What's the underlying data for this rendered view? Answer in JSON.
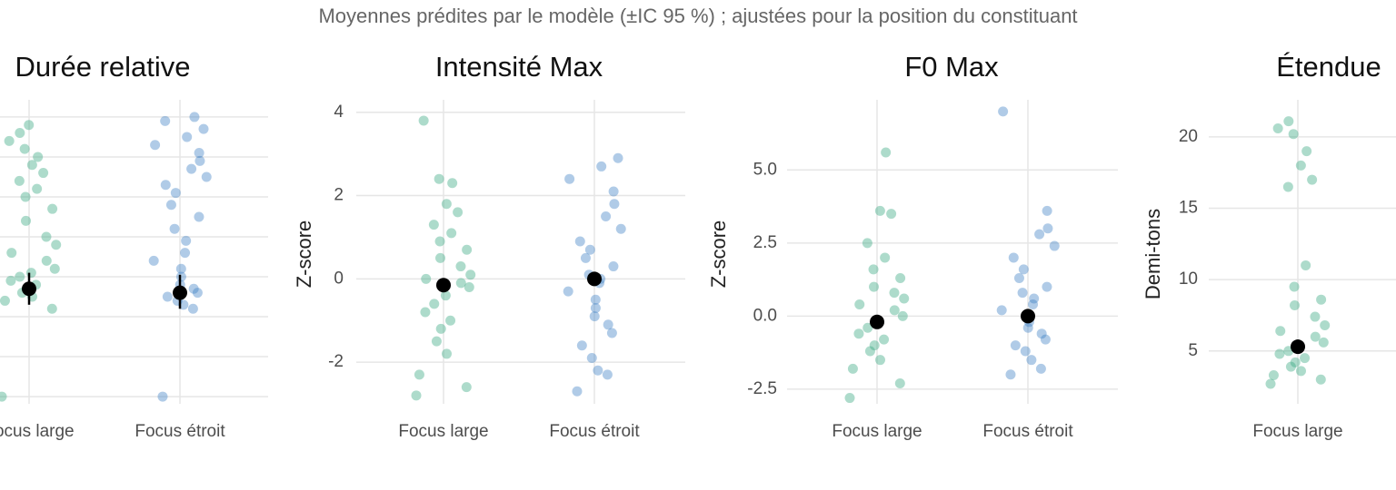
{
  "title": "Moyennes prédites par le modèle (±IC 95 %) ; ajustées pour la position du constituant",
  "chart_data": [
    {
      "type": "jitter",
      "title": "Durée relative",
      "categories": [
        "Focus large",
        "Focus étroit"
      ],
      "groups": [
        {
          "color": "#33a67c",
          "values": [
            0,
            2.2,
            2.4,
            2.5,
            2.6,
            2.7,
            2.8,
            2.9,
            3.0,
            3.1,
            3.2,
            3.4,
            3.6,
            3.8,
            4.0,
            4.4,
            4.7,
            5.0,
            5.2,
            5.4,
            5.6,
            5.8,
            6.0,
            6.2,
            6.4,
            6.6,
            6.8
          ]
        },
        {
          "color": "#3a7cc2",
          "values": [
            0,
            2.2,
            2.3,
            2.4,
            2.5,
            2.6,
            2.7,
            2.8,
            3.0,
            3.2,
            3.4,
            3.6,
            3.9,
            4.2,
            4.5,
            4.8,
            5.1,
            5.3,
            5.5,
            5.7,
            5.9,
            6.1,
            6.3,
            6.5,
            6.7,
            6.9,
            7.0
          ]
        }
      ],
      "means": [
        2.7,
        2.6
      ],
      "ci_low": [
        2.3,
        2.2
      ],
      "ci_high": [
        3.1,
        3.05
      ],
      "ylim": [
        -0.18,
        7.43
      ],
      "yticks": [
        0,
        1,
        2,
        3,
        4,
        5,
        6,
        7
      ],
      "ytick_labels": false,
      "grid": true
    },
    {
      "type": "jitter",
      "title": "Intensité Max",
      "ylabel": "Z-score",
      "categories": [
        "Focus large",
        "Focus étroit"
      ],
      "groups": [
        {
          "color": "#33a67c",
          "values": [
            -2.8,
            -2.6,
            -2.3,
            -1.8,
            -1.5,
            -1.2,
            -1.0,
            -0.8,
            -0.6,
            -0.4,
            -0.2,
            -0.1,
            0.0,
            0.1,
            0.3,
            0.5,
            0.7,
            0.9,
            1.1,
            1.3,
            1.6,
            1.8,
            2.3,
            2.4,
            3.8
          ]
        },
        {
          "color": "#3a7cc2",
          "values": [
            -2.7,
            -2.3,
            -2.2,
            -1.9,
            -1.6,
            -1.3,
            -1.1,
            -0.9,
            -0.7,
            -0.5,
            -0.3,
            -0.1,
            0.0,
            0.1,
            0.3,
            0.5,
            0.7,
            0.9,
            1.2,
            1.5,
            1.8,
            2.1,
            2.4,
            2.7,
            2.9
          ]
        }
      ],
      "means": [
        -0.15,
        0.0
      ],
      "ci_low": [
        -0.25,
        -0.06
      ],
      "ci_high": [
        -0.05,
        0.06
      ],
      "ylim": [
        -3.0,
        4.3
      ],
      "yticks": [
        -2,
        0,
        2,
        4
      ],
      "grid": true
    },
    {
      "type": "jitter",
      "title": "F0 Max",
      "ylabel": "Z-score",
      "categories": [
        "Focus large",
        "Focus étroit"
      ],
      "groups": [
        {
          "color": "#33a67c",
          "values": [
            -2.8,
            -2.3,
            -1.8,
            -1.5,
            -1.2,
            -1.0,
            -0.8,
            -0.6,
            -0.4,
            -0.2,
            0.0,
            0.2,
            0.4,
            0.6,
            0.8,
            1.0,
            1.3,
            1.6,
            2.0,
            2.5,
            3.5,
            3.6,
            5.6
          ]
        },
        {
          "color": "#3a7cc2",
          "values": [
            -2.0,
            -1.8,
            -1.5,
            -1.2,
            -1.0,
            -0.8,
            -0.6,
            -0.4,
            -0.2,
            0.0,
            0.2,
            0.4,
            0.6,
            0.8,
            1.0,
            1.3,
            1.6,
            2.0,
            2.4,
            2.8,
            3.0,
            3.6,
            7.0
          ]
        }
      ],
      "means": [
        -0.2,
        0.0
      ],
      "ci_low": [
        -0.3,
        -0.07
      ],
      "ci_high": [
        -0.1,
        0.07
      ],
      "ylim": [
        -3.0,
        7.4
      ],
      "yticks": [
        {
          "value": -2.5,
          "label": "-2.5"
        },
        {
          "value": 0,
          "label": "0.0"
        },
        2.5,
        {
          "value": 5,
          "label": "5.0"
        }
      ],
      "grid": true
    },
    {
      "type": "jitter",
      "title": "Étendue",
      "ylabel": "Demi-tons",
      "categories": [
        "Focus large"
      ],
      "groups": [
        {
          "color": "#33a67c",
          "values": [
            2.7,
            3.0,
            3.3,
            3.6,
            3.9,
            4.2,
            4.5,
            4.8,
            5.0,
            5.3,
            5.6,
            6.0,
            6.4,
            6.8,
            7.4,
            8.2,
            8.6,
            9.5,
            11.0,
            16.5,
            17.0,
            18.0,
            19.0,
            20.2,
            20.6,
            21.1
          ]
        }
      ],
      "means": [
        5.3
      ],
      "ci_low": [
        4.8
      ],
      "ci_high": [
        5.8
      ],
      "ylim": [
        1.3,
        22.6
      ],
      "yticks": [
        5,
        10,
        15,
        20
      ],
      "grid": true
    }
  ]
}
